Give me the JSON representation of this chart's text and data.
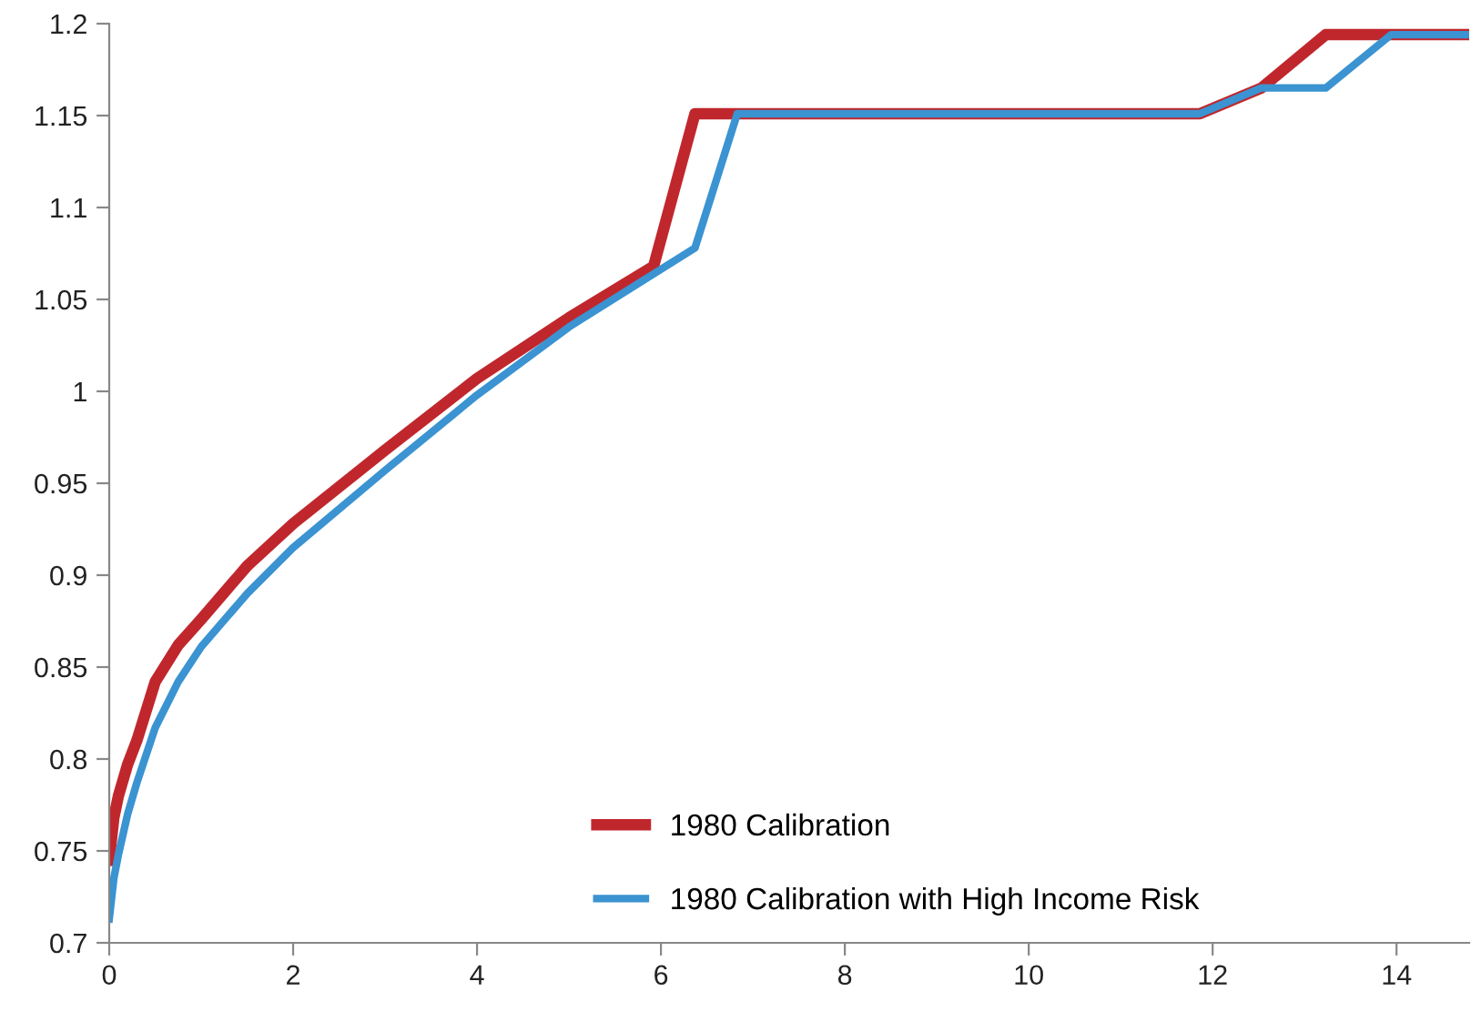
{
  "chart_data": {
    "type": "line",
    "xlim": [
      0,
      14.79
    ],
    "ylim": [
      0.7,
      1.2
    ],
    "xticks": [
      0,
      2,
      4,
      6,
      8,
      10,
      12,
      14
    ],
    "yticks": [
      0.7,
      0.75,
      0.8,
      0.85,
      0.9,
      0.95,
      1,
      1.05,
      1.1,
      1.15,
      1.2
    ],
    "grid": false,
    "legend": "bottom",
    "marker": "none",
    "line_style": "solid",
    "series": [
      {
        "name": "1980 Calibration",
        "color": "#c0272d",
        "x": [
          0,
          0.05,
          0.1,
          0.2,
          0.3,
          0.5,
          0.75,
          1,
          1.5,
          2,
          3,
          4,
          5,
          5.92,
          6.37,
          11.86,
          12.53,
          13.23,
          14.79
        ],
        "values": [
          0.745,
          0.768,
          0.78,
          0.797,
          0.81,
          0.842,
          0.862,
          0.876,
          0.905,
          0.928,
          0.968,
          1.007,
          1.04,
          1.068,
          1.151,
          1.151,
          1.165,
          1.194,
          1.194
        ]
      },
      {
        "name": "1980 Calibration with High Income Risk",
        "color": "#3b93d1",
        "x": [
          0,
          0.05,
          0.1,
          0.2,
          0.3,
          0.5,
          0.75,
          1,
          1.5,
          2,
          3,
          4,
          5,
          6.37,
          6.83,
          11.86,
          12.53,
          13.23,
          13.94,
          14.79
        ],
        "values": [
          0.713,
          0.735,
          0.748,
          0.77,
          0.787,
          0.817,
          0.842,
          0.861,
          0.89,
          0.915,
          0.957,
          0.998,
          1.035,
          1.078,
          1.151,
          1.151,
          1.165,
          1.165,
          1.194,
          1.194
        ]
      }
    ]
  }
}
